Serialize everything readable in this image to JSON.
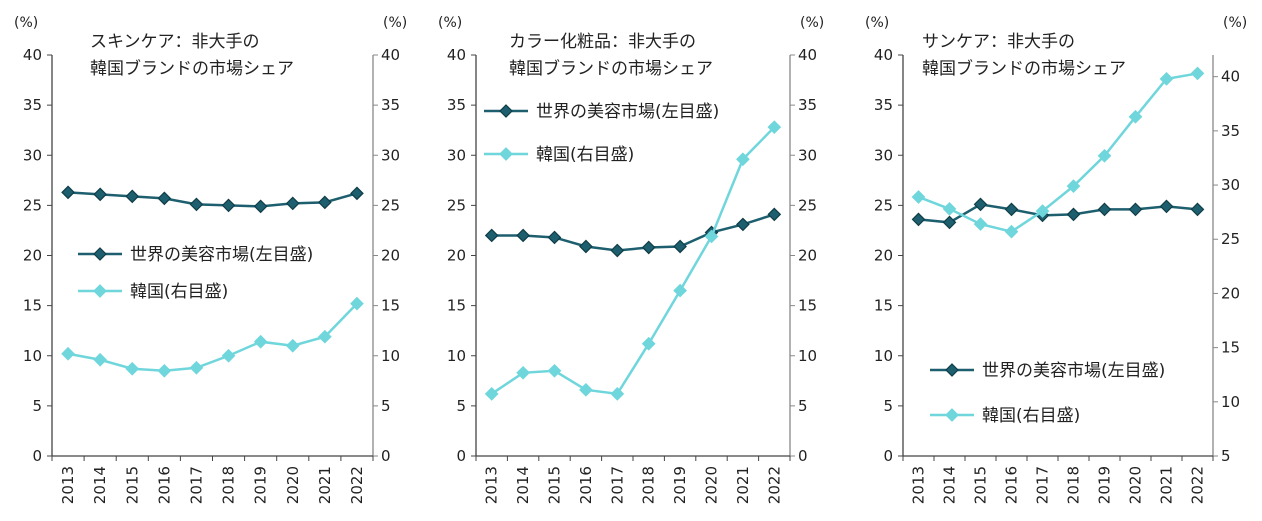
{
  "colors": {
    "world": "#1d5f6e",
    "korea": "#6fd6dc",
    "axis": "#444444",
    "right_axis": "#888888"
  },
  "chart_data": [
    {
      "type": "line",
      "title_lines": [
        "スキンケア：非大手の",
        "韓国ブランドの市場シェア"
      ],
      "unit_left": "(%)",
      "unit_right": "(%)",
      "x": [
        "2013",
        "2014",
        "2015",
        "2016",
        "2017",
        "2018",
        "2019",
        "2020",
        "2021",
        "2022"
      ],
      "ylim_left": [
        0,
        40
      ],
      "yticks_left": [
        0,
        5,
        10,
        15,
        20,
        25,
        30,
        35,
        40
      ],
      "ylim_right": [
        0,
        40
      ],
      "yticks_right": [
        0,
        5,
        10,
        15,
        20,
        25,
        30,
        35,
        40
      ],
      "legend_placement": "center",
      "grid": false,
      "series": [
        {
          "name": "世界の美容市場(左目盛)",
          "axis": "left",
          "marker": "diamond",
          "values": [
            26.3,
            26.1,
            25.9,
            25.7,
            25.1,
            25.0,
            24.9,
            25.2,
            25.3,
            26.2
          ]
        },
        {
          "name": "韓国(右目盛)",
          "axis": "right",
          "marker": "diamond",
          "values": [
            10.2,
            9.6,
            8.7,
            8.5,
            8.8,
            10.0,
            11.4,
            11.0,
            11.9,
            15.2
          ]
        }
      ]
    },
    {
      "type": "line",
      "title_lines": [
        "カラー化粧品：非大手の",
        "韓国ブランドの市場シェア"
      ],
      "unit_left": "(%)",
      "unit_right": "(%)",
      "x": [
        "2013",
        "2014",
        "2015",
        "2016",
        "2017",
        "2018",
        "2019",
        "2020",
        "2021",
        "2022"
      ],
      "ylim_left": [
        0,
        40
      ],
      "yticks_left": [
        0,
        5,
        10,
        15,
        20,
        25,
        30,
        35,
        40
      ],
      "ylim_right": [
        0,
        40
      ],
      "yticks_right": [
        0,
        5,
        10,
        15,
        20,
        25,
        30,
        35,
        40
      ],
      "legend_placement": "upper-left",
      "grid": false,
      "series": [
        {
          "name": "世界の美容市場(左目盛)",
          "axis": "left",
          "marker": "diamond",
          "values": [
            22.0,
            22.0,
            21.8,
            20.9,
            20.5,
            20.8,
            20.9,
            22.3,
            23.1,
            24.1
          ]
        },
        {
          "name": "韓国(右目盛)",
          "axis": "right",
          "marker": "diamond",
          "values": [
            6.2,
            8.3,
            8.5,
            6.6,
            6.2,
            11.2,
            16.5,
            21.9,
            29.6,
            32.8
          ]
        }
      ]
    },
    {
      "type": "line",
      "title_lines": [
        "サンケア：非大手の",
        "韓国ブランドの市場シェア"
      ],
      "unit_left": "(%)",
      "unit_right": "(%)",
      "x": [
        "2013",
        "2014",
        "2015",
        "2016",
        "2017",
        "2018",
        "2019",
        "2020",
        "2021",
        "2022"
      ],
      "ylim_left": [
        0,
        40
      ],
      "yticks_left": [
        0,
        5,
        10,
        15,
        20,
        25,
        30,
        35,
        40
      ],
      "ylim_right": [
        5,
        42
      ],
      "yticks_right": [
        5,
        10,
        15,
        20,
        25,
        30,
        35,
        40
      ],
      "legend_placement": "lower-left",
      "grid": false,
      "series": [
        {
          "name": "世界の美容市場(左目盛)",
          "axis": "left",
          "marker": "diamond",
          "values": [
            23.6,
            23.3,
            25.1,
            24.6,
            24.0,
            24.1,
            24.6,
            24.6,
            24.9,
            24.6
          ]
        },
        {
          "name": "韓国(右目盛)",
          "axis": "right",
          "marker": "diamond",
          "values": [
            28.9,
            27.8,
            26.4,
            25.7,
            27.6,
            29.9,
            32.7,
            36.3,
            39.8,
            40.3
          ]
        }
      ]
    }
  ]
}
